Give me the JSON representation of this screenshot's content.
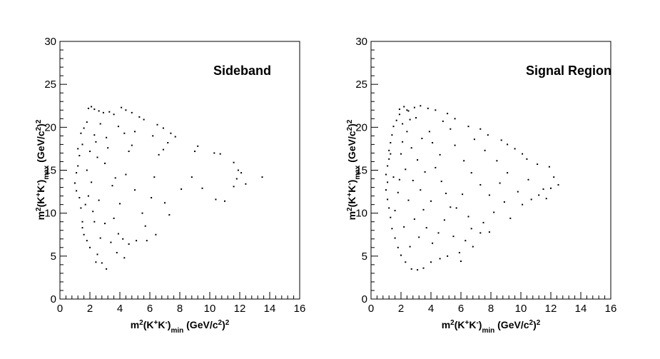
{
  "chart_data": [
    {
      "type": "scatter",
      "annotation": "Sideband",
      "xlabel": {
        "base": "m",
        "sup1": "2",
        "mid1": "(K",
        "sup2": "+",
        "mid2": "K",
        "sup3": "-",
        "mid3": ")",
        "sub": "min",
        "unit": " (GeV/c",
        "sup4": "2",
        "mid4": ")",
        "sup5": "2"
      },
      "ylabel": {
        "base": "m",
        "sup1": "2",
        "mid1": "(K",
        "sup2": "+",
        "mid2": "K",
        "sup3": "-",
        "mid3": ")",
        "sub": "max",
        "unit": " (GeV/c",
        "sup4": "2",
        "mid4": ")",
        "sup5": "2"
      },
      "xlim": [
        0,
        16
      ],
      "ylim": [
        0,
        30
      ],
      "xticks": [
        0,
        2,
        4,
        6,
        8,
        10,
        12,
        14,
        16
      ],
      "yticks": [
        0,
        5,
        10,
        15,
        20,
        25,
        30
      ],
      "grid": false,
      "points": [
        [
          1.9,
          22.2
        ],
        [
          2.1,
          22.4
        ],
        [
          2.3,
          22.1
        ],
        [
          2.6,
          21.9
        ],
        [
          2.9,
          21.7
        ],
        [
          3.3,
          21.8
        ],
        [
          3.6,
          21.5
        ],
        [
          4.1,
          22.3
        ],
        [
          4.4,
          22.0
        ],
        [
          4.8,
          21.7
        ],
        [
          5.3,
          21.2
        ],
        [
          5.6,
          20.9
        ],
        [
          6.5,
          20.3
        ],
        [
          6.9,
          19.9
        ],
        [
          7.4,
          19.3
        ],
        [
          7.7,
          18.9
        ],
        [
          7.2,
          18.2
        ],
        [
          6.9,
          17.4
        ],
        [
          6.6,
          16.8
        ],
        [
          1.4,
          19.3
        ],
        [
          1.6,
          19.9
        ],
        [
          1.8,
          20.6
        ],
        [
          2.3,
          19.1
        ],
        [
          2.7,
          20.4
        ],
        [
          3.1,
          18.8
        ],
        [
          3.9,
          20.1
        ],
        [
          4.3,
          19.3
        ],
        [
          5.0,
          19.5
        ],
        [
          6.2,
          19.0
        ],
        [
          3.2,
          17.6
        ],
        [
          4.6,
          17.2
        ],
        [
          2.5,
          16.5
        ],
        [
          9.2,
          17.8
        ],
        [
          9.0,
          17.2
        ],
        [
          10.3,
          17.0
        ],
        [
          10.7,
          16.9
        ],
        [
          11.6,
          15.9
        ],
        [
          11.9,
          15.0
        ],
        [
          12.1,
          14.7
        ],
        [
          11.8,
          14.0
        ],
        [
          13.5,
          14.2
        ],
        [
          12.4,
          13.4
        ],
        [
          11.6,
          13.1
        ],
        [
          9.5,
          12.9
        ],
        [
          10.4,
          11.6
        ],
        [
          11.0,
          11.4
        ],
        [
          8.8,
          14.2
        ],
        [
          8.1,
          12.8
        ],
        [
          6.3,
          14.2
        ],
        [
          6.1,
          11.8
        ],
        [
          7.0,
          11.2
        ],
        [
          7.3,
          9.8
        ],
        [
          6.4,
          7.5
        ],
        [
          5.1,
          6.8
        ],
        [
          4.6,
          6.4
        ],
        [
          4.2,
          7.0
        ],
        [
          3.8,
          5.4
        ],
        [
          4.3,
          4.8
        ],
        [
          3.1,
          3.5
        ],
        [
          2.8,
          4.2
        ],
        [
          2.4,
          4.3
        ],
        [
          2.5,
          5.2
        ],
        [
          2.0,
          6.0
        ],
        [
          1.8,
          6.8
        ],
        [
          1.6,
          7.5
        ],
        [
          1.5,
          9.0
        ],
        [
          1.4,
          10.6
        ],
        [
          1.3,
          11.8
        ],
        [
          1.1,
          12.6
        ],
        [
          1.0,
          13.5
        ],
        [
          1.1,
          14.7
        ],
        [
          1.2,
          15.5
        ],
        [
          1.3,
          16.7
        ],
        [
          1.2,
          17.5
        ],
        [
          1.5,
          18.0
        ],
        [
          1.8,
          15.0
        ],
        [
          2.1,
          13.6
        ],
        [
          1.9,
          12.0
        ],
        [
          2.6,
          11.5
        ],
        [
          2.2,
          10.2
        ],
        [
          3.0,
          8.8
        ],
        [
          2.7,
          7.1
        ],
        [
          3.4,
          6.6
        ],
        [
          3.6,
          9.4
        ],
        [
          3.5,
          13.2
        ],
        [
          3.7,
          14.1
        ],
        [
          5.0,
          12.7
        ],
        [
          5.5,
          10.0
        ],
        [
          5.7,
          8.5
        ],
        [
          4.0,
          11.1
        ],
        [
          4.4,
          14.5
        ],
        [
          3.0,
          15.8
        ],
        [
          2.4,
          18.3
        ],
        [
          2.0,
          17.2
        ],
        [
          1.7,
          11.0
        ],
        [
          1.5,
          8.3
        ],
        [
          2.3,
          9.0
        ],
        [
          3.9,
          7.6
        ],
        [
          5.8,
          6.8
        ],
        [
          4.8,
          17.9
        ]
      ]
    },
    {
      "type": "scatter",
      "annotation": "Signal Region",
      "xlabel": {
        "base": "m",
        "sup1": "2",
        "mid1": "(K",
        "sup2": "+",
        "mid2": "K",
        "sup3": "-",
        "mid3": ")",
        "sub": "min",
        "unit": " (GeV/c",
        "sup4": "2",
        "mid4": ")",
        "sup5": "2"
      },
      "ylabel": {
        "base": "m",
        "sup1": "2",
        "mid1": "(K",
        "sup2": "+",
        "mid2": "K",
        "sup3": "-",
        "mid3": ")",
        "sub": "max",
        "unit": " (GeV/c",
        "sup4": "2",
        "mid4": ")",
        "sup5": "2"
      },
      "xlim": [
        0,
        16
      ],
      "ylim": [
        0,
        30
      ],
      "xticks": [
        0,
        2,
        4,
        6,
        8,
        10,
        12,
        14,
        16
      ],
      "yticks": [
        0,
        5,
        10,
        15,
        20,
        25,
        30
      ],
      "grid": false,
      "points": [
        [
          1.9,
          22.1
        ],
        [
          2.2,
          22.4
        ],
        [
          2.5,
          21.9
        ],
        [
          2.9,
          22.3
        ],
        [
          3.3,
          22.5
        ],
        [
          3.8,
          22.2
        ],
        [
          4.3,
          22.0
        ],
        [
          5.1,
          21.6
        ],
        [
          5.6,
          21.0
        ],
        [
          6.5,
          20.1
        ],
        [
          7.3,
          19.8
        ],
        [
          7.8,
          19.1
        ],
        [
          8.7,
          18.5
        ],
        [
          9.1,
          18.0
        ],
        [
          9.6,
          17.5
        ],
        [
          10.1,
          16.9
        ],
        [
          10.4,
          16.3
        ],
        [
          11.1,
          15.7
        ],
        [
          11.9,
          15.4
        ],
        [
          12.2,
          14.2
        ],
        [
          12.5,
          13.3
        ],
        [
          11.5,
          12.8
        ],
        [
          11.2,
          12.1
        ],
        [
          10.7,
          11.6
        ],
        [
          10.1,
          11.0
        ],
        [
          9.3,
          9.4
        ],
        [
          8.2,
          10.1
        ],
        [
          7.5,
          8.9
        ],
        [
          7.3,
          7.7
        ],
        [
          6.7,
          8.2
        ],
        [
          6.3,
          6.8
        ],
        [
          5.9,
          5.4
        ],
        [
          5.1,
          5.0
        ],
        [
          4.6,
          4.7
        ],
        [
          4.0,
          4.3
        ],
        [
          3.5,
          3.6
        ],
        [
          3.1,
          3.4
        ],
        [
          2.7,
          3.5
        ],
        [
          2.3,
          4.3
        ],
        [
          2.0,
          5.1
        ],
        [
          1.8,
          6.0
        ],
        [
          1.6,
          7.1
        ],
        [
          1.4,
          8.2
        ],
        [
          1.3,
          9.5
        ],
        [
          1.2,
          10.6
        ],
        [
          1.1,
          11.6
        ],
        [
          1.0,
          12.7
        ],
        [
          1.1,
          13.6
        ],
        [
          1.0,
          14.5
        ],
        [
          1.1,
          15.5
        ],
        [
          1.2,
          16.3
        ],
        [
          1.2,
          17.3
        ],
        [
          1.3,
          18.2
        ],
        [
          1.4,
          19.1
        ],
        [
          1.5,
          20.1
        ],
        [
          1.7,
          20.8
        ],
        [
          1.9,
          21.5
        ],
        [
          2.1,
          20.4
        ],
        [
          2.4,
          19.5
        ],
        [
          2.1,
          18.3
        ],
        [
          2.7,
          17.6
        ],
        [
          3.1,
          16.2
        ],
        [
          2.3,
          15.1
        ],
        [
          2.8,
          13.8
        ],
        [
          3.3,
          12.7
        ],
        [
          2.5,
          11.5
        ],
        [
          3.5,
          10.4
        ],
        [
          2.9,
          9.3
        ],
        [
          3.7,
          8.3
        ],
        [
          3.2,
          7.2
        ],
        [
          4.1,
          6.5
        ],
        [
          2.6,
          6.1
        ],
        [
          4.5,
          7.7
        ],
        [
          4.9,
          9.2
        ],
        [
          5.3,
          10.7
        ],
        [
          5.0,
          12.3
        ],
        [
          4.7,
          13.7
        ],
        [
          4.3,
          15.3
        ],
        [
          4.6,
          16.8
        ],
        [
          4.1,
          18.2
        ],
        [
          3.9,
          19.5
        ],
        [
          5.6,
          17.9
        ],
        [
          6.2,
          16.1
        ],
        [
          6.7,
          14.7
        ],
        [
          7.3,
          13.3
        ],
        [
          7.9,
          12.1
        ],
        [
          8.6,
          13.5
        ],
        [
          9.1,
          14.7
        ],
        [
          8.4,
          16.1
        ],
        [
          7.6,
          17.3
        ],
        [
          6.1,
          12.2
        ],
        [
          5.7,
          10.6
        ],
        [
          6.5,
          9.6
        ],
        [
          4.0,
          11.4
        ],
        [
          3.6,
          14.8
        ],
        [
          2.0,
          16.9
        ],
        [
          1.8,
          12.4
        ],
        [
          1.6,
          10.3
        ],
        [
          2.2,
          8.4
        ],
        [
          1.9,
          13.9
        ],
        [
          2.6,
          20.9
        ],
        [
          3.4,
          18.7
        ],
        [
          3.0,
          21.1
        ],
        [
          8.9,
          11.3
        ],
        [
          9.8,
          12.5
        ],
        [
          10.5,
          13.9
        ],
        [
          11.7,
          11.7
        ],
        [
          12.0,
          12.9
        ],
        [
          6.9,
          18.6
        ],
        [
          5.3,
          19.8
        ],
        [
          4.8,
          20.7
        ],
        [
          6.0,
          4.4
        ],
        [
          5.5,
          7.3
        ],
        [
          6.8,
          6.1
        ],
        [
          7.9,
          7.8
        ],
        [
          2.4,
          22.0
        ],
        [
          1.5,
          14.2
        ],
        [
          1.3,
          16.9
        ]
      ]
    }
  ]
}
